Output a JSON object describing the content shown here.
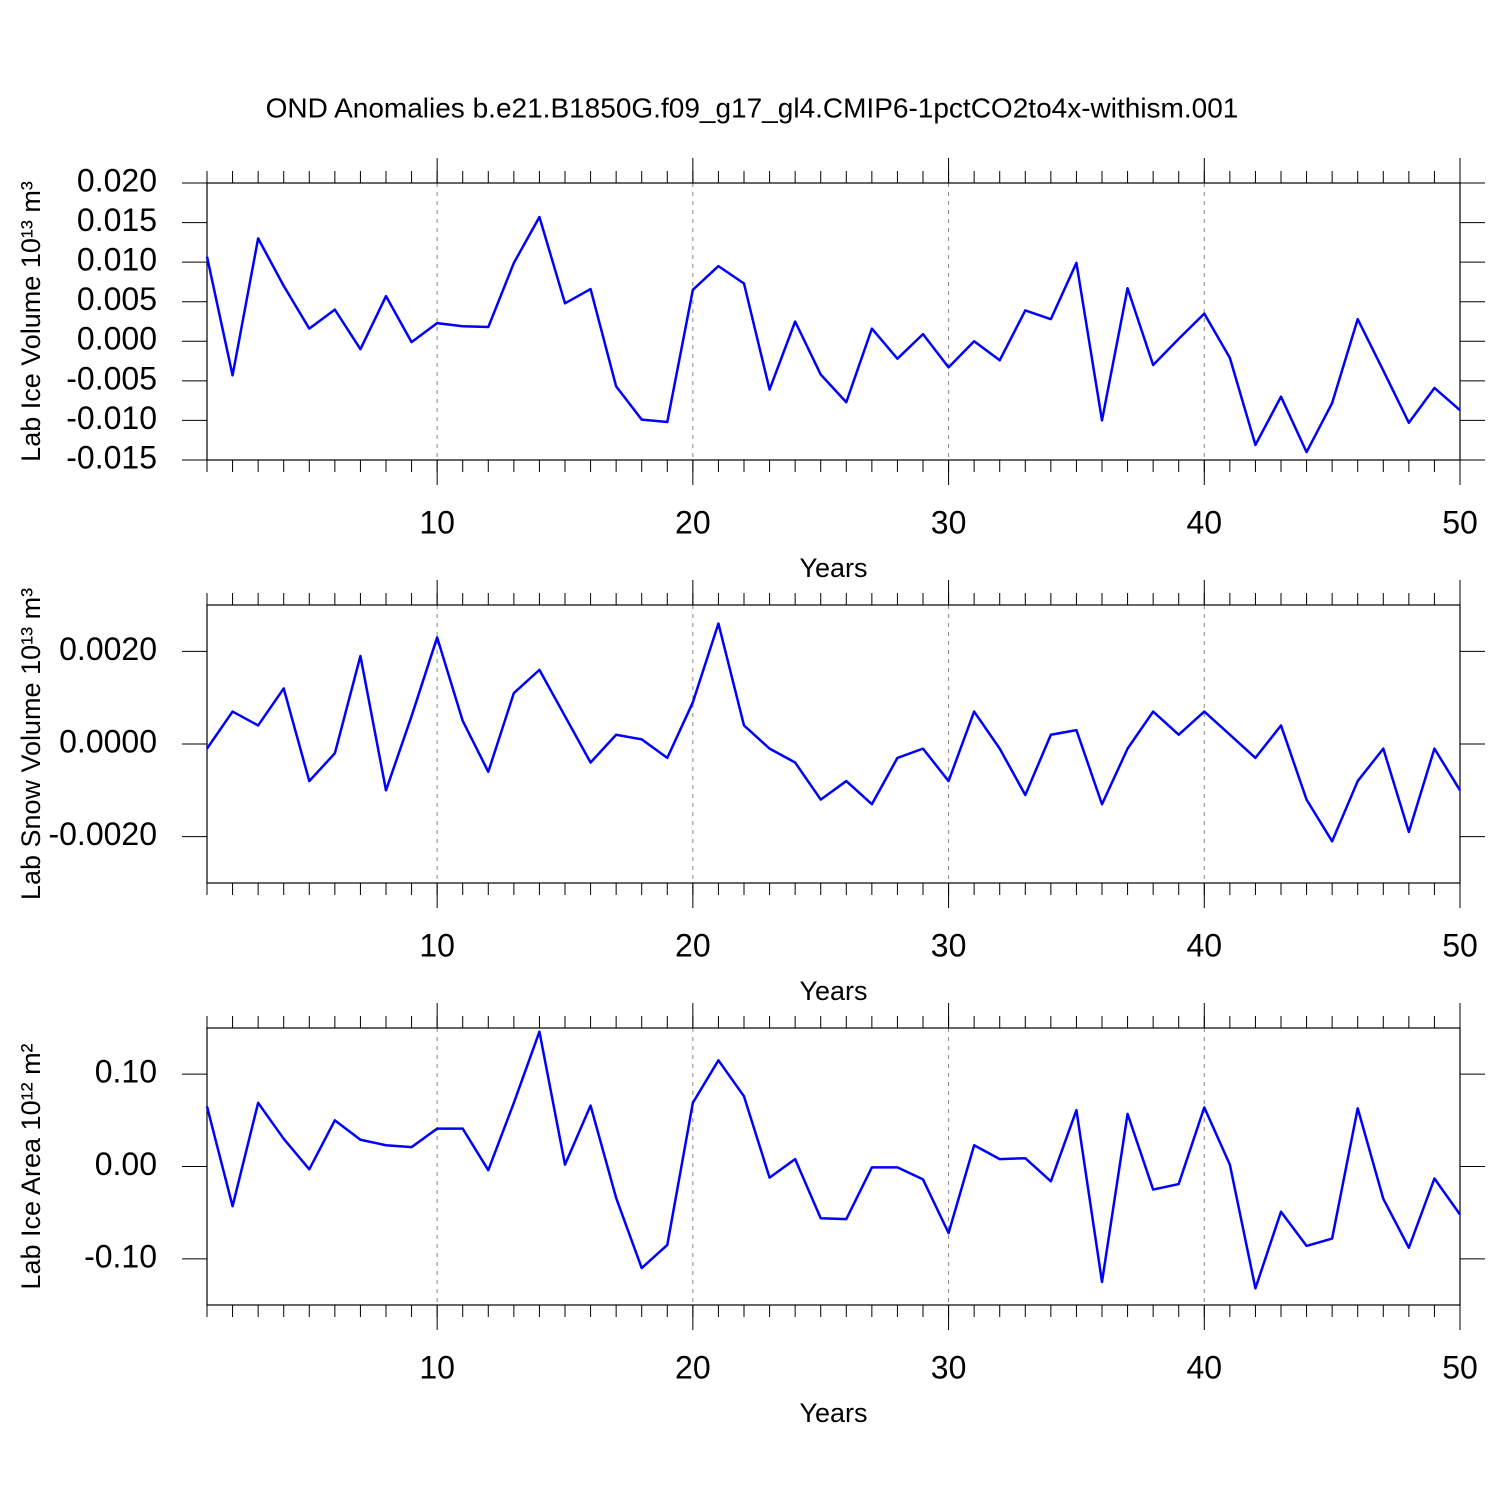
{
  "chart_data": [
    {
      "type": "line",
      "title": "OND Anomalies b.e21.B1850G.f09_g17_gl4.CMIP6-1pctCO2to4x-withism.001",
      "xlabel": "Years",
      "ylabel": "Lab Ice Volume 10¹³ m³",
      "color": "#0000ff",
      "grid": true,
      "x": [
        1,
        2,
        3,
        4,
        5,
        6,
        7,
        8,
        9,
        10,
        11,
        12,
        13,
        14,
        15,
        16,
        17,
        18,
        19,
        20,
        21,
        22,
        23,
        24,
        25,
        26,
        27,
        28,
        29,
        30,
        31,
        32,
        33,
        34,
        35,
        36,
        37,
        38,
        39,
        40,
        41,
        42,
        43,
        44,
        45,
        46,
        47,
        48,
        49,
        50
      ],
      "values": [
        0.0107,
        -0.0043,
        0.013,
        0.007,
        0.0016,
        0.004,
        -0.001,
        0.0057,
        -0.0001,
        0.0023,
        0.0019,
        0.0018,
        0.0099,
        0.0157,
        0.0048,
        0.0066,
        -0.0057,
        -0.0099,
        -0.0102,
        0.0065,
        0.0095,
        0.0073,
        -0.0061,
        0.0025,
        -0.0042,
        -0.0077,
        0.0016,
        -0.0022,
        0.0009,
        -0.0033,
        0.0,
        -0.0024,
        0.0039,
        0.0028,
        0.0099,
        -0.01,
        0.0067,
        -0.003,
        0.0003,
        0.0035,
        -0.0021,
        -0.0131,
        -0.007,
        -0.014,
        -0.0078,
        0.0028,
        -0.0037,
        -0.0103,
        -0.0059,
        -0.0087
      ],
      "xlim": [
        1,
        50
      ],
      "xticks": [
        10,
        20,
        30,
        40,
        50
      ],
      "ylim": [
        -0.015,
        0.02
      ],
      "yticks": [
        {
          "value": -0.015,
          "label": "-0.015"
        },
        {
          "value": -0.01,
          "label": "-0.010"
        },
        {
          "value": -0.005,
          "label": "-0.005"
        },
        {
          "value": 0,
          "label": "0.000"
        },
        {
          "value": 0.005,
          "label": "0.005"
        },
        {
          "value": 0.01,
          "label": "0.010"
        },
        {
          "value": 0.015,
          "label": "0.015"
        },
        {
          "value": 0.02,
          "label": "0.020"
        }
      ]
    },
    {
      "type": "line",
      "xlabel": "Years",
      "ylabel": "Lab Snow Volume 10¹³ m³",
      "color": "#0000ff",
      "grid": true,
      "x": [
        1,
        2,
        3,
        4,
        5,
        6,
        7,
        8,
        9,
        10,
        11,
        12,
        13,
        14,
        15,
        16,
        17,
        18,
        19,
        20,
        21,
        22,
        23,
        24,
        25,
        26,
        27,
        28,
        29,
        30,
        31,
        32,
        33,
        34,
        35,
        36,
        37,
        38,
        39,
        40,
        41,
        42,
        43,
        44,
        45,
        46,
        47,
        48,
        49,
        50
      ],
      "values": [
        -0.0001,
        0.0007,
        0.0004,
        0.0012,
        -0.0008,
        -0.0002,
        0.0019,
        -0.001,
        0.0006,
        0.0023,
        0.0005,
        -0.0006,
        0.0011,
        0.0016,
        0.0006,
        -0.0004,
        0.0002,
        0.0001,
        -0.0003,
        0.0009,
        0.0026,
        0.0004,
        -0.0001,
        -0.0004,
        -0.0012,
        -0.0008,
        -0.0013,
        -0.0003,
        -0.0001,
        -0.0008,
        0.0007,
        -0.0001,
        -0.0011,
        0.0002,
        0.0003,
        -0.0013,
        -0.0001,
        0.0007,
        0.0002,
        0.0007,
        0.0002,
        -0.0003,
        0.0004,
        -0.0012,
        -0.0021,
        -0.0008,
        -0.0001,
        -0.0019,
        -0.0001,
        -0.001
      ],
      "xlim": [
        1,
        50
      ],
      "xticks": [
        10,
        20,
        30,
        40,
        50
      ],
      "ylim": [
        -0.003,
        0.003
      ],
      "yticks": [
        {
          "value": -0.002,
          "label": "-0.0020"
        },
        {
          "value": 0,
          "label": "0.0000"
        },
        {
          "value": 0.002,
          "label": "0.0020"
        }
      ]
    },
    {
      "type": "line",
      "xlabel": "Years",
      "ylabel": "Lab Ice Area 10¹² m²",
      "color": "#0000ff",
      "grid": true,
      "x": [
        1,
        2,
        3,
        4,
        5,
        6,
        7,
        8,
        9,
        10,
        11,
        12,
        13,
        14,
        15,
        16,
        17,
        18,
        19,
        20,
        21,
        22,
        23,
        24,
        25,
        26,
        27,
        28,
        29,
        30,
        31,
        32,
        33,
        34,
        35,
        36,
        37,
        38,
        39,
        40,
        41,
        42,
        43,
        44,
        45,
        46,
        47,
        48,
        49,
        50
      ],
      "values": [
        0.065,
        -0.043,
        0.069,
        0.03,
        -0.003,
        0.05,
        0.029,
        0.023,
        0.021,
        0.041,
        0.041,
        -0.004,
        0.069,
        0.146,
        0.002,
        0.066,
        -0.034,
        -0.11,
        -0.085,
        0.069,
        0.115,
        0.076,
        -0.012,
        0.008,
        -0.056,
        -0.057,
        -0.001,
        -0.001,
        -0.014,
        -0.072,
        0.023,
        0.008,
        0.009,
        -0.016,
        0.061,
        -0.125,
        0.057,
        -0.025,
        -0.019,
        0.064,
        0.002,
        -0.132,
        -0.049,
        -0.086,
        -0.078,
        0.063,
        -0.035,
        -0.088,
        -0.013,
        -0.052
      ],
      "xlim": [
        1,
        50
      ],
      "xticks": [
        10,
        20,
        30,
        40,
        50
      ],
      "ylim": [
        -0.15,
        0.15
      ],
      "yticks": [
        {
          "value": -0.1,
          "label": "-0.10"
        },
        {
          "value": 0,
          "label": "0.00"
        },
        {
          "value": 0.1,
          "label": "0.10"
        }
      ]
    }
  ]
}
